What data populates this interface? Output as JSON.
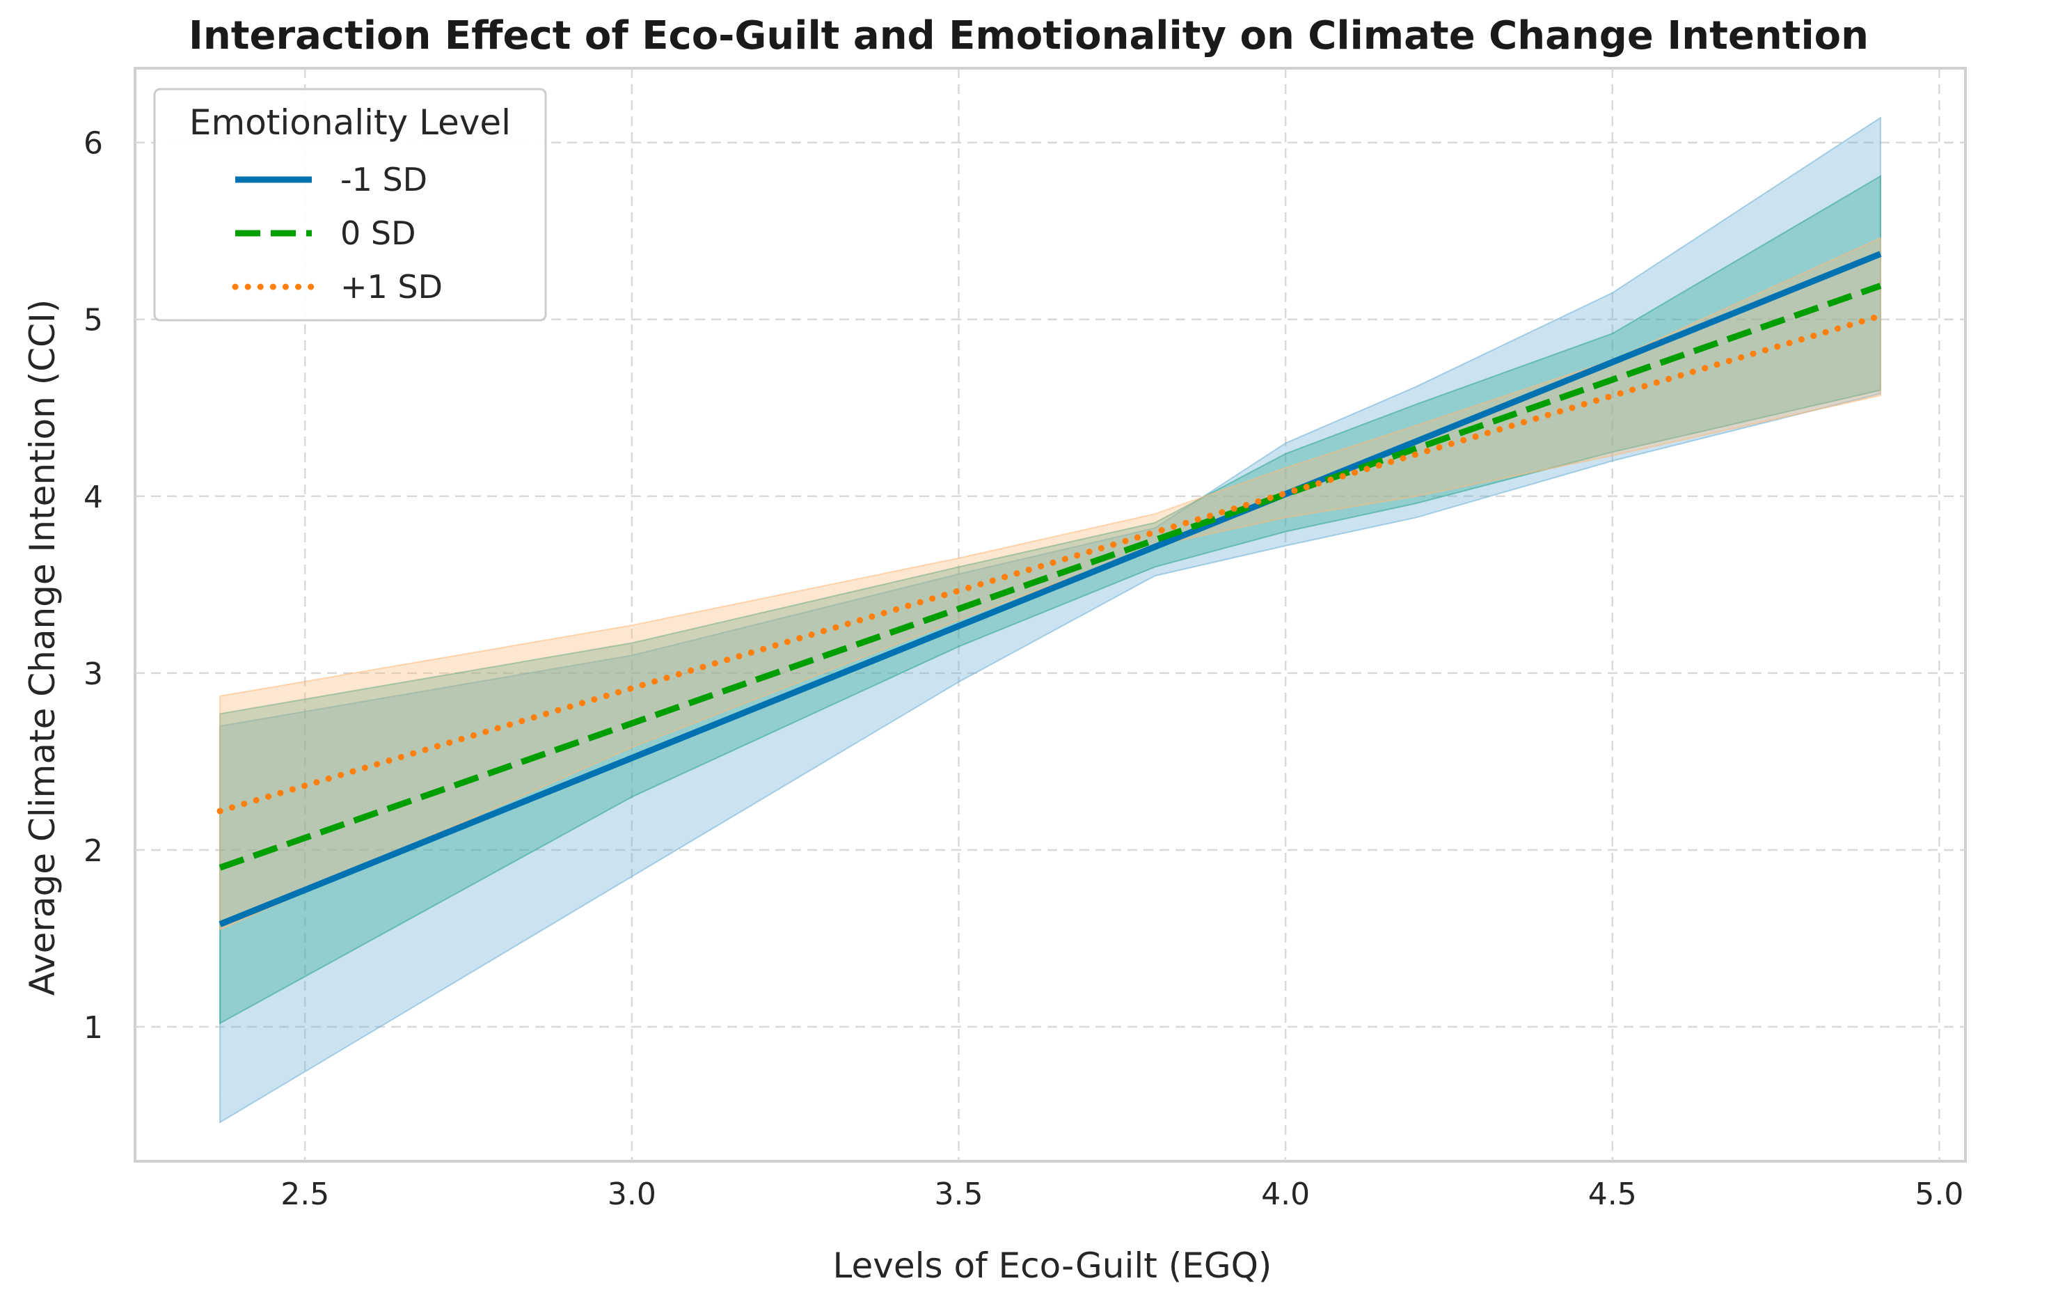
{
  "chart_data": {
    "type": "line",
    "title": "Interaction Effect of Eco-Guilt and Emotionality on Climate Change Intention",
    "xlabel": "Levels of Eco-Guilt (EGQ)",
    "ylabel": "Average Climate Change Intention (CCI)",
    "xlim": [
      2.24,
      5.04
    ],
    "ylim": [
      0.24,
      6.42
    ],
    "xticks": [
      "2.5",
      "3.0",
      "3.5",
      "4.0",
      "4.5",
      "5.0"
    ],
    "yticks": [
      "1",
      "2",
      "3",
      "4",
      "5",
      "6"
    ],
    "grid": true,
    "legend": {
      "title": "Emotionality Level",
      "placement": "top-left"
    },
    "series": [
      {
        "name": "-1 SD",
        "style": "solid",
        "color": "#0072B2",
        "band_color": "#6BAED6",
        "x": [
          2.37,
          4.91
        ],
        "y": [
          1.58,
          5.37
        ],
        "band": {
          "x": [
            2.37,
            3.0,
            3.5,
            3.8,
            4.0,
            4.2,
            4.5,
            4.91
          ],
          "lower": [
            0.46,
            1.85,
            2.95,
            3.55,
            3.72,
            3.88,
            4.2,
            4.58
          ],
          "upper": [
            2.7,
            3.1,
            3.56,
            3.82,
            4.3,
            4.62,
            5.15,
            6.14
          ]
        }
      },
      {
        "name": "0 SD",
        "style": "dashed",
        "color": "#009E00",
        "band_color": "#2CA58D",
        "x": [
          2.37,
          4.91
        ],
        "y": [
          1.9,
          5.19
        ],
        "band": {
          "x": [
            2.37,
            3.0,
            3.5,
            3.8,
            4.0,
            4.2,
            4.5,
            4.91
          ],
          "lower": [
            1.02,
            2.3,
            3.15,
            3.6,
            3.8,
            3.96,
            4.25,
            4.6
          ],
          "upper": [
            2.77,
            3.17,
            3.6,
            3.85,
            4.24,
            4.52,
            4.92,
            5.81
          ]
        }
      },
      {
        "name": "+1 SD",
        "style": "dotted",
        "color": "#FF7F0E",
        "band_color": "#FDB97A",
        "x": [
          2.37,
          4.91
        ],
        "y": [
          2.22,
          5.02
        ],
        "band": {
          "x": [
            2.37,
            3.0,
            3.5,
            3.8,
            4.0,
            4.2,
            4.5,
            4.91
          ],
          "lower": [
            1.55,
            2.58,
            3.3,
            3.72,
            3.88,
            4.0,
            4.23,
            4.57
          ],
          "upper": [
            2.87,
            3.27,
            3.65,
            3.9,
            4.16,
            4.4,
            4.77,
            5.46
          ]
        }
      }
    ]
  }
}
